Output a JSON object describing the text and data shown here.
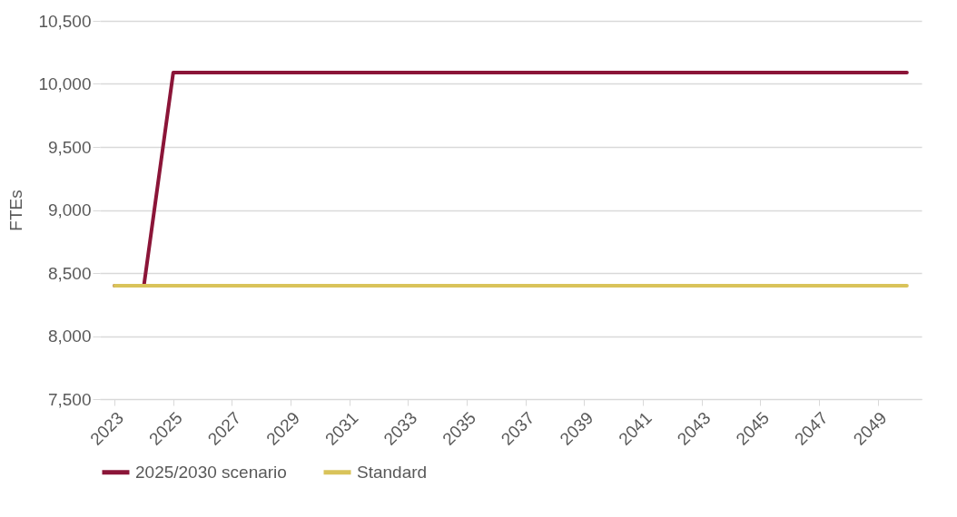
{
  "chart_data": {
    "type": "line",
    "ylabel": "FTEs",
    "categories": [
      "2023",
      null,
      "2025",
      null,
      "2027",
      null,
      "2029",
      null,
      "2031",
      null,
      "2033",
      null,
      "2035",
      null,
      "2037",
      null,
      "2039",
      null,
      "2041",
      null,
      "2043",
      null,
      "2045",
      null,
      "2047",
      null,
      "2049",
      null
    ],
    "series": [
      {
        "name": "2025/2030 scenario",
        "color": "#8b1538",
        "values": [
          8400,
          8400,
          10090,
          10090,
          10090,
          10090,
          10090,
          10090,
          10090,
          10090,
          10090,
          10090,
          10090,
          10090,
          10090,
          10090,
          10090,
          10090,
          10090,
          10090,
          10090,
          10090,
          10090,
          10090,
          10090,
          10090,
          10090,
          10090
        ]
      },
      {
        "name": "Standard",
        "color": "#d9c35a",
        "values": [
          8400,
          8400,
          8400,
          8400,
          8400,
          8400,
          8400,
          8400,
          8400,
          8400,
          8400,
          8400,
          8400,
          8400,
          8400,
          8400,
          8400,
          8400,
          8400,
          8400,
          8400,
          8400,
          8400,
          8400,
          8400,
          8400,
          8400,
          8400
        ]
      }
    ],
    "ylim": [
      7500,
      10500
    ],
    "yticks": [
      {
        "value": 7500,
        "label": "7,500"
      },
      {
        "value": 8000,
        "label": "8,000"
      },
      {
        "value": 8500,
        "label": "8,500"
      },
      {
        "value": 9000,
        "label": "9,000"
      },
      {
        "value": 9500,
        "label": "9,500"
      },
      {
        "value": 10000,
        "label": "10,000"
      },
      {
        "value": 10500,
        "label": "10,500"
      }
    ],
    "grid": "y",
    "legend": "bottom",
    "marker": "none",
    "line_style": "solid"
  }
}
